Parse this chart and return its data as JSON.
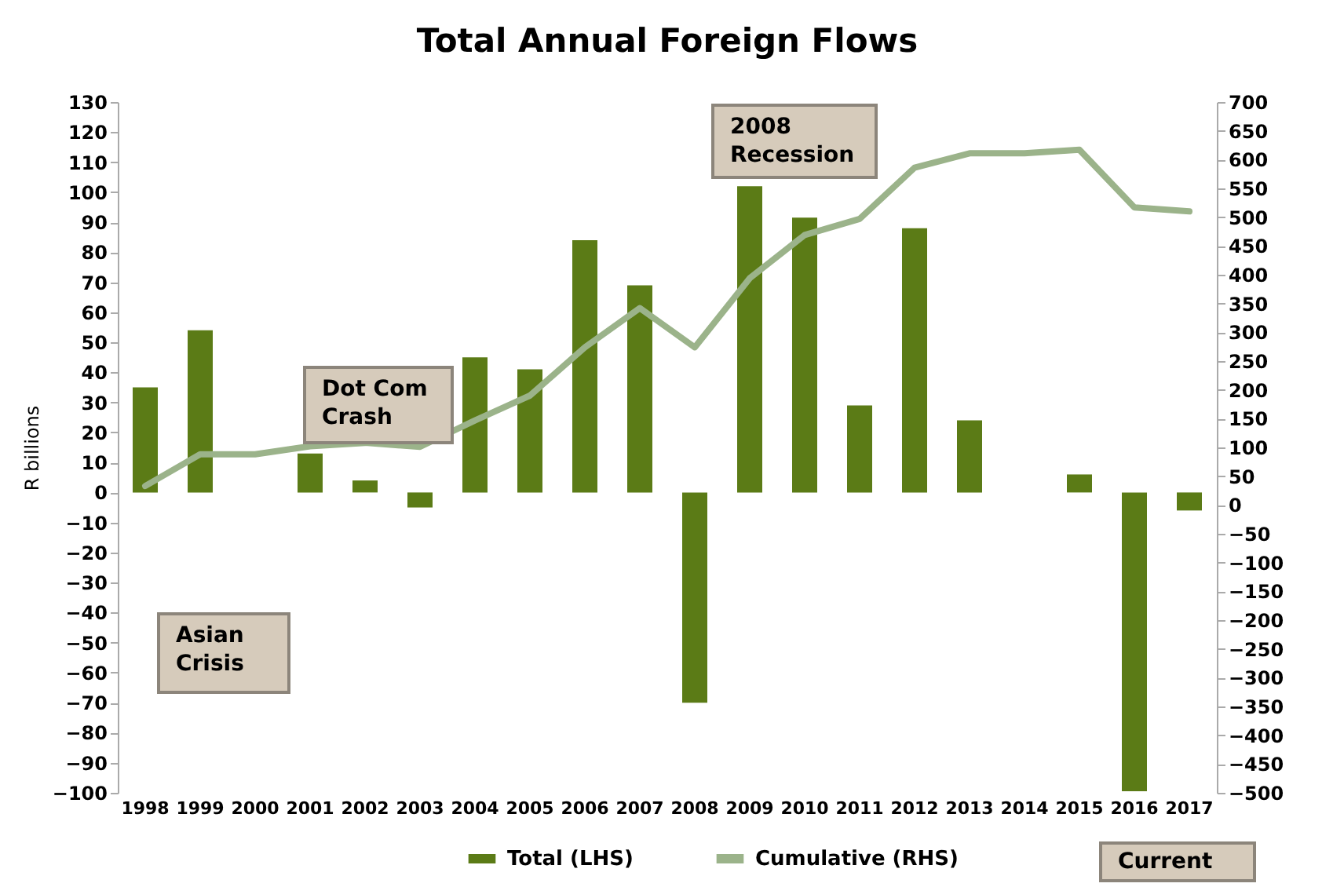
{
  "chart_data": {
    "type": "bar",
    "title": "Total Annual Foreign Flows",
    "ylabel": "R billions",
    "categories": [
      "1998",
      "1999",
      "2000",
      "2001",
      "2002",
      "2003",
      "2004",
      "2005",
      "2006",
      "2007",
      "2008",
      "2009",
      "2010",
      "2011",
      "2012",
      "2013",
      "2014",
      "2015",
      "2016",
      "2017"
    ],
    "series": [
      {
        "name": "Total (LHS)",
        "color": "#5b7b16",
        "values": [
          35,
          54,
          0,
          13,
          4,
          -5,
          45,
          41,
          84,
          69,
          -70,
          102,
          91.5,
          29,
          88,
          24,
          0,
          6,
          -99.5,
          -6
        ]
      },
      {
        "name": "Cumulative (RHS)",
        "type": "line",
        "axis": "y2",
        "color": "#9bb38a",
        "values": [
          33,
          88,
          88,
          102,
          108,
          101,
          147,
          190,
          274,
          342,
          274,
          394,
          469,
          497,
          586,
          611,
          611,
          617,
          517,
          510
        ]
      }
    ],
    "ylim": [
      -100,
      130
    ],
    "yticks": [
      -100,
      -90,
      -80,
      -70,
      -60,
      -50,
      -40,
      -30,
      -20,
      -10,
      0,
      10,
      20,
      30,
      40,
      50,
      60,
      70,
      80,
      90,
      100,
      110,
      120,
      130
    ],
    "y2lim": [
      -500,
      700
    ],
    "y2ticks": [
      -500,
      -450,
      -400,
      -350,
      -300,
      -250,
      -200,
      -150,
      -100,
      -50,
      0,
      50,
      100,
      150,
      200,
      250,
      300,
      350,
      400,
      450,
      500,
      550,
      600,
      650,
      700
    ],
    "annotations": [
      "Dot Com\nCrash",
      "2008\nRecession",
      "Asian\nCrisis",
      "Current"
    ],
    "legend": "bottom",
    "grid": false,
    "line_style": "solid",
    "marker": "none"
  }
}
